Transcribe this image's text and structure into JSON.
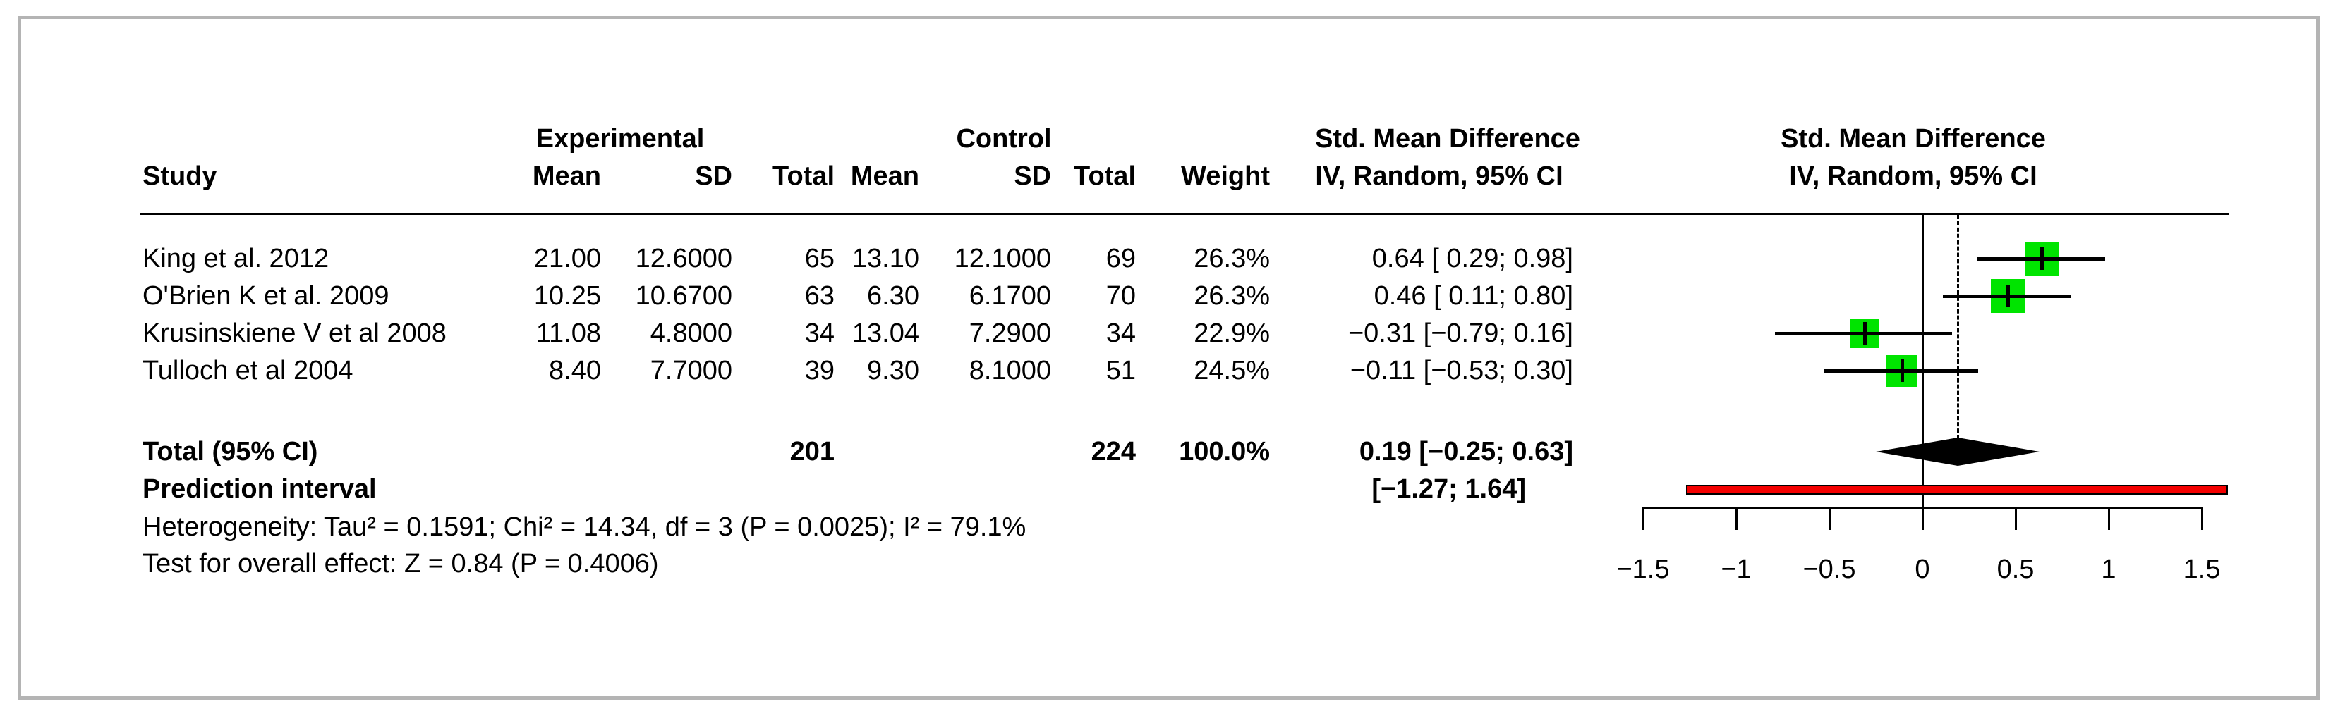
{
  "table": {
    "header": {
      "group_experimental": "Experimental",
      "group_control": "Control",
      "smd_line1": "Std. Mean Difference",
      "smd_line2": "IV, Random, 95% CI",
      "plot_line1": "Std. Mean Difference",
      "plot_line2": "IV, Random, 95% CI",
      "study": "Study",
      "mean_e": "Mean",
      "sd_e": "SD",
      "total_e": "Total",
      "mean_c": "Mean",
      "sd_c": "SD",
      "total_c": "Total",
      "weight": "Weight"
    },
    "rows": [
      {
        "study": "King et al. 2012",
        "mean_e": "21.00",
        "sd_e": "12.6000",
        "total_e": "65",
        "mean_c": "13.10",
        "sd_c": "12.1000",
        "total_c": "69",
        "weight": "26.3%",
        "smd_ci": "0.64 [ 0.29; 0.98]"
      },
      {
        "study": "O'Brien K et al. 2009",
        "mean_e": "10.25",
        "sd_e": "10.6700",
        "total_e": "63",
        "mean_c": "6.30",
        "sd_c": "6.1700",
        "total_c": "70",
        "weight": "26.3%",
        "smd_ci": "0.46 [ 0.11; 0.80]"
      },
      {
        "study": "Krusinskiene V et al 2008",
        "mean_e": "11.08",
        "sd_e": "4.8000",
        "total_e": "34",
        "mean_c": "13.04",
        "sd_c": "7.2900",
        "total_c": "34",
        "weight": "22.9%",
        "smd_ci": "−0.31 [−0.79; 0.16]"
      },
      {
        "study": "Tulloch et al 2004",
        "mean_e": "8.40",
        "sd_e": "7.7000",
        "total_e": "39",
        "mean_c": "9.30",
        "sd_c": "8.1000",
        "total_c": "51",
        "weight": "24.5%",
        "smd_ci": "−0.11 [−0.53; 0.30]"
      }
    ],
    "total_row": {
      "label": "Total (95% CI)",
      "total_e": "201",
      "total_c": "224",
      "weight": "100.0%",
      "smd_ci": "0.19 [−0.25; 0.63]"
    },
    "prediction_row": {
      "label": "Prediction interval",
      "smd_ci": "[−1.27; 1.64]"
    },
    "heterogeneity": "Heterogeneity: Tau² = 0.1591; Chi² = 14.34, df = 3 (P = 0.0025); I² = 79.1%",
    "overall_effect": "Test for overall effect: Z = 0.84 (P = 0.4006)"
  },
  "chart_data": {
    "type": "forest",
    "effect_measure": "Std. Mean Difference",
    "model": "IV, Random, 95% CI",
    "studies": [
      {
        "name": "King et al. 2012",
        "estimate": 0.64,
        "ci_low": 0.29,
        "ci_high": 0.98,
        "weight_pct": 26.3
      },
      {
        "name": "O'Brien K et al. 2009",
        "estimate": 0.46,
        "ci_low": 0.11,
        "ci_high": 0.8,
        "weight_pct": 26.3
      },
      {
        "name": "Krusinskiene V et al 2008",
        "estimate": -0.31,
        "ci_low": -0.79,
        "ci_high": 0.16,
        "weight_pct": 22.9
      },
      {
        "name": "Tulloch et al 2004",
        "estimate": -0.11,
        "ci_low": -0.53,
        "ci_high": 0.3,
        "weight_pct": 24.5
      }
    ],
    "total": {
      "estimate": 0.19,
      "ci_low": -0.25,
      "ci_high": 0.63
    },
    "prediction_interval": {
      "ci_low": -1.27,
      "ci_high": 1.64
    },
    "zero_line": 0,
    "pooled_dashed_line": 0.19,
    "axis_ticks": [
      -1.5,
      -1,
      -0.5,
      0,
      0.5,
      1,
      1.5
    ],
    "axis_tick_labels": [
      "−1.5",
      "−1",
      "−0.5",
      "0",
      "0.5",
      "1",
      "1.5"
    ],
    "xlim": [
      -1.5,
      1.64
    ],
    "colors": {
      "square": "#00e400",
      "prediction_bar": "#f40000",
      "diamond": "#000000",
      "frame": "#b4b4b4"
    }
  }
}
